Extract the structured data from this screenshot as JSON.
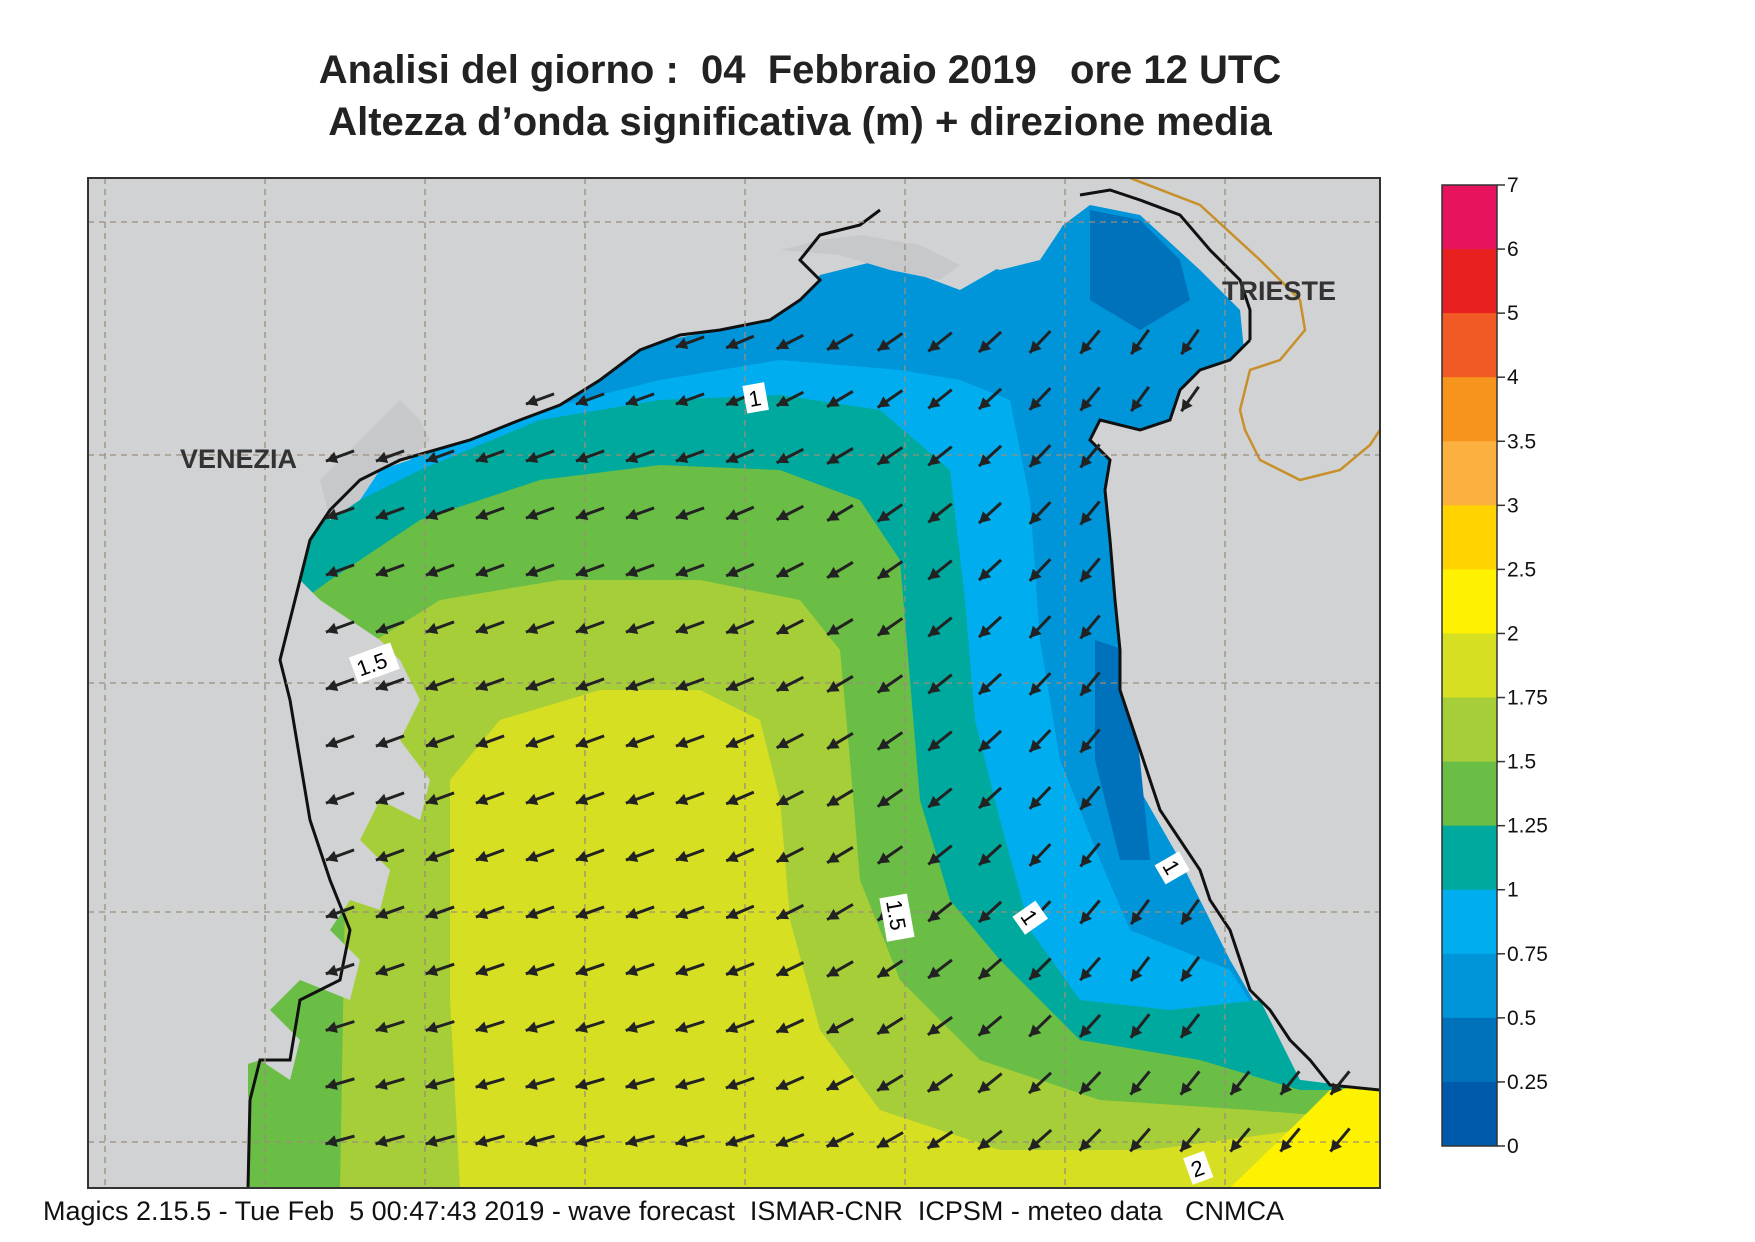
{
  "title": {
    "line1": "Analisi del giorno :  04  Febbraio 2019   ore 12 UTC",
    "line2": "Altezza d’onda significativa (m) + direzione media"
  },
  "cities": {
    "venezia": "VENEZIA",
    "trieste": "TRIESTE"
  },
  "contour_labels": [
    "1",
    "1.5",
    "1.5",
    "1",
    "1",
    "2"
  ],
  "legend": {
    "ticks": [
      "7",
      "6",
      "5",
      "4",
      "3.5",
      "3",
      "2.5",
      "2",
      "1.75",
      "1.5",
      "1.25",
      "1",
      "0.75",
      "0.5",
      "0.25",
      "0"
    ],
    "colors": [
      "#e8135f",
      "#e82020",
      "#f15a24",
      "#f7941d",
      "#fbb040",
      "#ffd200",
      "#fff200",
      "#d7df23",
      "#a6ce39",
      "#6abd45",
      "#00a99d",
      "#00aeef",
      "#0094d9",
      "#0072bc",
      "#005aab"
    ]
  },
  "colors": {
    "land": "#d1d2d4",
    "border": "#c8902a",
    "coast": "#111111",
    "arrow": "#222222"
  },
  "footer": "Magics 2.15.5 - Tue Feb  5 00:47:43 2019 - wave forecast  ISMAR-CNR  ICPSM - meteo data   CNMCA"
}
